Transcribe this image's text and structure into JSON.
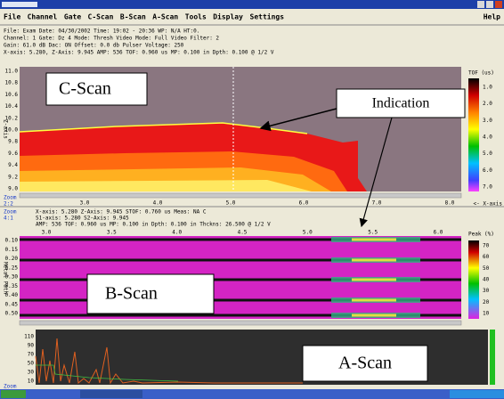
{
  "menu": {
    "items": [
      "File",
      "Channel",
      "Gate",
      "C-Scan",
      "B-Scan",
      "A-Scan",
      "Tools",
      "Display",
      "Settings"
    ],
    "help": "Help"
  },
  "info": [
    "File:                    Exam Date: 04/30/2002  Time: 19:02 - 20:36  WP: N/A  HT:0.",
    "Channel: 1  Gate: Dz 4  Mode: Thresh  Video Mode: Full  Video Filter: 2",
    "Gain: 61.0 dB  Dac: ON  Offset: 0.0 db  Pulser Voltage: 250",
    "X-axis:   5.280, Z-Axis:   9.945 AMP: 536 TOF:  0.960 us  MP: 0.100 in  Dpth: 0.100 @ 1/2 V"
  ],
  "cscan": {
    "axis_label": "Z-axis",
    "yticks": [
      "11.0",
      "10.8",
      "10.6",
      "10.4",
      "10.2",
      "10.0",
      "9.8",
      "9.6",
      "9.4",
      "9.2",
      "9.0"
    ],
    "xticks": [
      "3.0",
      "4.0",
      "5.0",
      "6.0",
      "7.0",
      "8.0"
    ],
    "zoom_label": "Zoom",
    "zoom": "2:2",
    "colorbar_title": "TOF (us)",
    "colorbar_ticks": [
      "1.0",
      "2.0",
      "3.0",
      "4.0",
      "5.0",
      "6.0",
      "7.0"
    ],
    "x_axis_note": "<- X-axis"
  },
  "bscan": {
    "zoom_label": "Zoom",
    "zoom": "4:1",
    "info": [
      "X-axis:   5.280  Z-Axis:   9.945   STOF: 0.760 us  Meas: NA C",
      "S1-axis:  5.280  S2-Axis:  9.945",
      "AMP: 536 TOF: 0.960 us  MP: 0.100 in  Dpth: 0.100 in  Thckns: 26.500 @ 1/2 V"
    ],
    "xticks": [
      "3.0",
      "3.5",
      "4.0",
      "4.5",
      "5.0",
      "5.5",
      "6.0"
    ],
    "yticks": [
      "0.10",
      "0.15",
      "0.20",
      "0.25",
      "0.30",
      "0.35",
      "0.40",
      "0.45",
      "0.50"
    ],
    "axis_label": "Metal Path",
    "colorbar_title": "Peak (%)",
    "colorbar_ticks": [
      "70",
      "60",
      "50",
      "40",
      "30",
      "20",
      "10"
    ]
  },
  "ascan": {
    "yticks": [
      "110",
      "90",
      "70",
      "50",
      "30",
      "10"
    ],
    "zoom_label": "Zoom"
  },
  "annotations": {
    "cscan": "C-Scan",
    "indication": "Indication",
    "bscan": "B-Scan",
    "ascan": "A-Scan"
  }
}
